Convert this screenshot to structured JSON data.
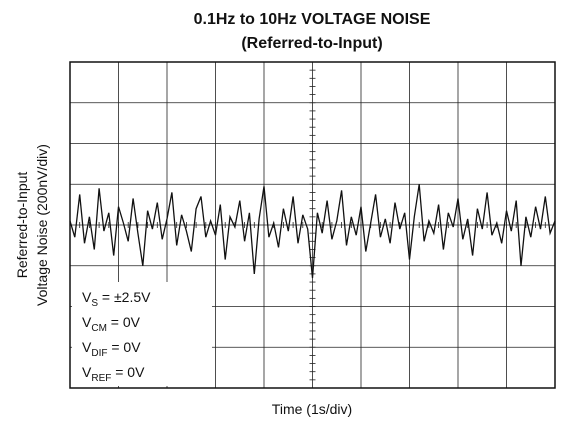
{
  "chart_data": {
    "type": "line",
    "title": "0.1Hz to 10Hz VOLTAGE NOISE",
    "subtitle": "(Referred-to-Input)",
    "y_label": [
      "Referred-to-Input",
      "Voltage Noise (200nV/div)"
    ],
    "x_label": "Time (1s/div)",
    "xlim": [
      0,
      10
    ],
    "xticks": [
      0,
      1,
      2,
      3,
      4,
      5,
      6,
      7,
      8,
      9,
      10
    ],
    "ylim": [
      -800,
      800
    ],
    "yticks": [
      -800,
      -600,
      -400,
      -200,
      0,
      200,
      400,
      600,
      800
    ],
    "grid": true,
    "series": [
      {
        "color": "#111111",
        "x": [
          0,
          0.1,
          0.2,
          0.3,
          0.4,
          0.5,
          0.6,
          0.7,
          0.8,
          0.9,
          1,
          1.1,
          1.2,
          1.3,
          1.4,
          1.5,
          1.6,
          1.7,
          1.8,
          1.9,
          2,
          2.1,
          2.2,
          2.3,
          2.4,
          2.5,
          2.6,
          2.7,
          2.8,
          2.9,
          3,
          3.1,
          3.2,
          3.3,
          3.4,
          3.5,
          3.6,
          3.7,
          3.8,
          3.9,
          4,
          4.1,
          4.2,
          4.3,
          4.4,
          4.5,
          4.6,
          4.7,
          4.8,
          4.9,
          5,
          5.1,
          5.2,
          5.3,
          5.4,
          5.5,
          5.6,
          5.7,
          5.8,
          5.9,
          6,
          6.1,
          6.2,
          6.3,
          6.4,
          6.5,
          6.6,
          6.7,
          6.8,
          6.9,
          7,
          7.1,
          7.2,
          7.3,
          7.4,
          7.5,
          7.6,
          7.7,
          7.8,
          7.9,
          8,
          8.1,
          8.2,
          8.3,
          8.4,
          8.5,
          8.6,
          8.7,
          8.8,
          8.9,
          9,
          9.1,
          9.2,
          9.3,
          9.4,
          9.5,
          9.6,
          9.7,
          9.8,
          9.9,
          10
        ],
        "values": [
          20,
          -60,
          150,
          -90,
          40,
          -120,
          180,
          -30,
          60,
          -150,
          90,
          10,
          -80,
          130,
          -40,
          -200,
          70,
          -20,
          110,
          -70,
          30,
          160,
          -100,
          50,
          -30,
          -130,
          80,
          140,
          -60,
          20,
          -50,
          100,
          -170,
          40,
          -10,
          120,
          -80,
          60,
          -240,
          30,
          190,
          -60,
          10,
          -110,
          80,
          -30,
          140,
          -90,
          50,
          -20,
          -260,
          60,
          -40,
          120,
          -70,
          20,
          170,
          -100,
          40,
          -50,
          90,
          -130,
          10,
          150,
          -60,
          30,
          -90,
          110,
          -20,
          60,
          -170,
          40,
          200,
          -80,
          20,
          -40,
          100,
          -120,
          60,
          -10,
          130,
          -70,
          30,
          -150,
          80,
          -20,
          160,
          -50,
          10,
          -90,
          70,
          -30,
          120,
          -200,
          40,
          -60,
          90,
          -20,
          140,
          -40,
          20
        ]
      }
    ],
    "annotations": [
      {
        "main": "V",
        "sub": "S",
        "rest": " = ±2.5V"
      },
      {
        "main": "V",
        "sub": "CM",
        "rest": " = 0V"
      },
      {
        "main": "V",
        "sub": "DIF",
        "rest": " = 0V"
      },
      {
        "main": "V",
        "sub": "REF",
        "rest": " = 0V"
      }
    ]
  }
}
